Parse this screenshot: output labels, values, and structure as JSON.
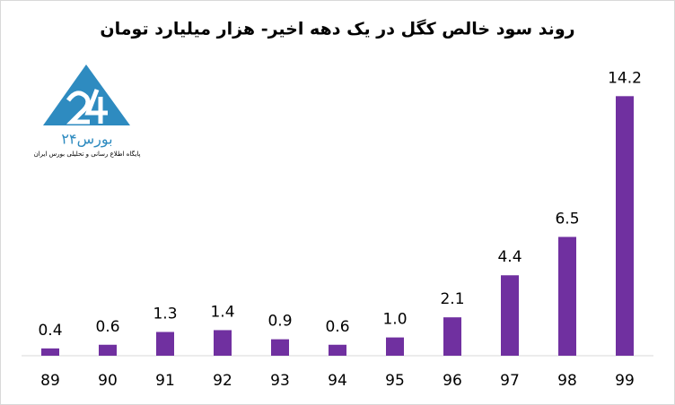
{
  "chart_data": {
    "type": "bar",
    "title": "روند سود خالص کگل در یک دهه اخیر- هزار میلیارد تومان",
    "logo_text": "بورس۲۴",
    "logo_subtitle": "پایگاه اطلاع رسانی و تحلیلی بورس ایران",
    "categories": [
      "89",
      "90",
      "91",
      "92",
      "93",
      "94",
      "95",
      "96",
      "97",
      "98",
      "99"
    ],
    "values": [
      0.4,
      0.6,
      1.3,
      1.4,
      0.9,
      0.6,
      1.0,
      2.1,
      4.4,
      6.5,
      14.2
    ],
    "value_labels": [
      "0.4",
      "0.6",
      "1.3",
      "1.4",
      "0.9",
      "0.6",
      "1.0",
      "2.1",
      "4.4",
      "6.5",
      "14.2"
    ],
    "color": "#7030a0",
    "ylim": [
      0,
      15
    ]
  }
}
